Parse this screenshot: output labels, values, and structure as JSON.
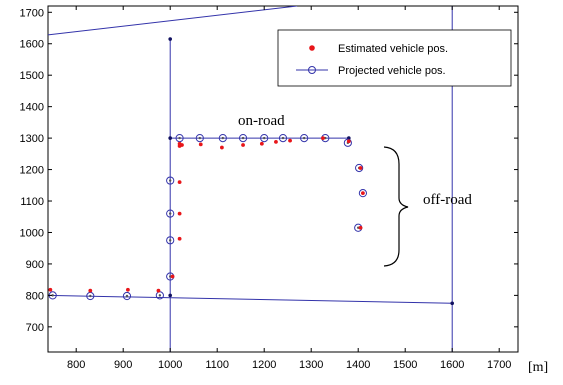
{
  "chart_data": {
    "type": "scatter",
    "title": "",
    "xlabel": "",
    "ylabel": "",
    "x_unit": "[m]",
    "xlim": [
      740,
      1740
    ],
    "ylim": [
      620,
      1720
    ],
    "xticks": [
      800,
      900,
      1000,
      1100,
      1200,
      1300,
      1400,
      1500,
      1600,
      1700
    ],
    "yticks": [
      700,
      800,
      900,
      1000,
      1100,
      1200,
      1300,
      1400,
      1500,
      1600,
      1700
    ],
    "grid": false,
    "legend_position": "top-right",
    "road_segments": [
      {
        "x": [
          740,
          1600
        ],
        "y": [
          800,
          775
        ]
      },
      {
        "x": [
          1000,
          1000
        ],
        "y": [
          620,
          1615
        ]
      },
      {
        "x": [
          1000,
          1380
        ],
        "y": [
          1300,
          1300
        ]
      },
      {
        "x": [
          1600,
          1600
        ],
        "y": [
          620,
          1720
        ]
      },
      {
        "x": [
          740,
          1270
        ],
        "y": [
          1628,
          1720
        ]
      }
    ],
    "road_nodes": {
      "x": [
        1000,
        1000,
        1000,
        1600,
        1380
      ],
      "y": [
        800,
        1615,
        1300,
        775,
        1300
      ]
    },
    "series": [
      {
        "name": "Estimated vehicle pos.",
        "color": "#e8161a",
        "marker": "dot",
        "x": [
          745,
          830,
          910,
          975,
          1005,
          1020,
          1020,
          1020,
          1020,
          1020,
          1025,
          1065,
          1110,
          1155,
          1195,
          1225,
          1255,
          1325,
          1380,
          1405,
          1410,
          1405
        ],
        "y": [
          818,
          815,
          818,
          815,
          860,
          980,
          1060,
          1160,
          1275,
          1282,
          1278,
          1280,
          1270,
          1278,
          1282,
          1288,
          1292,
          1300,
          1290,
          1205,
          1125,
          1015
        ]
      },
      {
        "name": "Projected vehicle pos.",
        "color": "#3333aa",
        "marker": "circle",
        "x": [
          750,
          830,
          908,
          978,
          1000,
          1000,
          1000,
          1000,
          1020,
          1063,
          1112,
          1155,
          1200,
          1240,
          1285,
          1330,
          1378,
          1402,
          1410,
          1400
        ],
        "y": [
          800,
          798,
          798,
          800,
          860,
          975,
          1060,
          1165,
          1300,
          1300,
          1300,
          1300,
          1300,
          1300,
          1300,
          1300,
          1285,
          1205,
          1125,
          1015
        ]
      }
    ],
    "annotations": [
      {
        "text": "on-road",
        "x": 1270,
        "y": 1330
      },
      {
        "text": "off-road",
        "x": 1530,
        "y": 1140
      }
    ]
  }
}
